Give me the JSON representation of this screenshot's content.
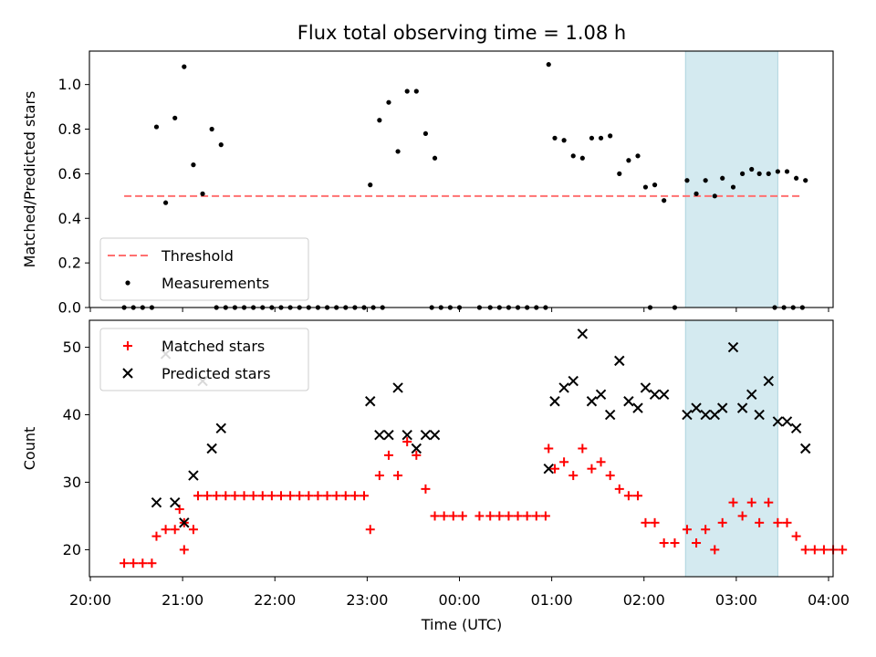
{
  "chart_data": {
    "title": "Flux total observing time = 1.08 h",
    "xlabel": "Time (UTC)",
    "x_ticks": [
      "20:00",
      "21:00",
      "22:00",
      "23:00",
      "00:00",
      "01:00",
      "02:00",
      "03:00",
      "04:00"
    ],
    "x_range": [
      "20:00",
      "04:05"
    ],
    "highlight_span": {
      "from": "02:27",
      "to": "03:27",
      "color": "#d4eaf0"
    },
    "panels": [
      {
        "type": "scatter",
        "ylabel": "Matched/Predicted stars",
        "ylim": [
          0,
          1.15
        ],
        "y_ticks": [
          0.0,
          0.2,
          0.4,
          0.6,
          0.8,
          1.0
        ],
        "threshold": {
          "name": "Threshold",
          "value": 0.5,
          "from": "20:22",
          "to": "03:42",
          "color": "#ff7070"
        },
        "legend": [
          "Threshold",
          "Measurements"
        ],
        "series": [
          {
            "name": "Measurements",
            "color": "#000000",
            "points": [
              [
                "20:22",
                0.0
              ],
              [
                "20:28",
                0.0
              ],
              [
                "20:34",
                0.0
              ],
              [
                "20:40",
                0.0
              ],
              [
                "20:43",
                0.81
              ],
              [
                "20:49",
                0.47
              ],
              [
                "20:55",
                0.85
              ],
              [
                "21:01",
                1.08
              ],
              [
                "21:07",
                0.64
              ],
              [
                "21:13",
                0.51
              ],
              [
                "21:19",
                0.8
              ],
              [
                "21:25",
                0.73
              ],
              [
                "21:22",
                0.0
              ],
              [
                "21:28",
                0.0
              ],
              [
                "21:34",
                0.0
              ],
              [
                "21:40",
                0.0
              ],
              [
                "21:46",
                0.0
              ],
              [
                "21:52",
                0.0
              ],
              [
                "21:58",
                0.0
              ],
              [
                "22:04",
                0.0
              ],
              [
                "22:10",
                0.0
              ],
              [
                "22:16",
                0.0
              ],
              [
                "22:22",
                0.0
              ],
              [
                "22:28",
                0.0
              ],
              [
                "22:34",
                0.0
              ],
              [
                "22:40",
                0.0
              ],
              [
                "22:46",
                0.0
              ],
              [
                "22:52",
                0.0
              ],
              [
                "22:58",
                0.0
              ],
              [
                "23:04",
                0.0
              ],
              [
                "23:10",
                0.0
              ],
              [
                "23:02",
                0.55
              ],
              [
                "23:08",
                0.84
              ],
              [
                "23:14",
                0.92
              ],
              [
                "23:20",
                0.7
              ],
              [
                "23:26",
                0.97
              ],
              [
                "23:32",
                0.97
              ],
              [
                "23:38",
                0.78
              ],
              [
                "23:44",
                0.67
              ],
              [
                "23:42",
                0.0
              ],
              [
                "23:48",
                0.0
              ],
              [
                "23:54",
                0.0
              ],
              [
                "00:00",
                0.0
              ],
              [
                "00:13",
                0.0
              ],
              [
                "00:20",
                0.0
              ],
              [
                "00:26",
                0.0
              ],
              [
                "00:32",
                0.0
              ],
              [
                "00:38",
                0.0
              ],
              [
                "00:44",
                0.0
              ],
              [
                "00:50",
                0.0
              ],
              [
                "00:56",
                0.0
              ],
              [
                "00:58",
                1.09
              ],
              [
                "01:02",
                0.76
              ],
              [
                "01:08",
                0.75
              ],
              [
                "01:14",
                0.68
              ],
              [
                "01:20",
                0.67
              ],
              [
                "01:26",
                0.76
              ],
              [
                "01:32",
                0.76
              ],
              [
                "01:38",
                0.77
              ],
              [
                "01:44",
                0.6
              ],
              [
                "01:50",
                0.66
              ],
              [
                "01:56",
                0.68
              ],
              [
                "02:01",
                0.54
              ],
              [
                "02:07",
                0.55
              ],
              [
                "02:04",
                0.0
              ],
              [
                "02:13",
                0.48
              ],
              [
                "02:20",
                0.0
              ],
              [
                "02:28",
                0.57
              ],
              [
                "02:34",
                0.51
              ],
              [
                "02:40",
                0.57
              ],
              [
                "02:46",
                0.5
              ],
              [
                "02:51",
                0.58
              ],
              [
                "02:58",
                0.54
              ],
              [
                "03:04",
                0.6
              ],
              [
                "03:10",
                0.62
              ],
              [
                "03:15",
                0.6
              ],
              [
                "03:21",
                0.6
              ],
              [
                "03:27",
                0.61
              ],
              [
                "03:33",
                0.61
              ],
              [
                "03:39",
                0.58
              ],
              [
                "03:45",
                0.57
              ],
              [
                "03:25",
                0.0
              ],
              [
                "03:31",
                0.0
              ],
              [
                "03:37",
                0.0
              ],
              [
                "03:43",
                0.0
              ]
            ]
          }
        ]
      },
      {
        "type": "scatter",
        "ylabel": "Count",
        "ylim": [
          16,
          54
        ],
        "y_ticks": [
          20,
          30,
          40,
          50
        ],
        "legend": [
          "Matched stars",
          "Predicted stars"
        ],
        "series": [
          {
            "name": "Matched stars",
            "marker": "plus",
            "color": "#ff0000",
            "points": [
              [
                "20:22",
                18
              ],
              [
                "20:28",
                18
              ],
              [
                "20:34",
                18
              ],
              [
                "20:40",
                18
              ],
              [
                "20:43",
                22
              ],
              [
                "20:49",
                23
              ],
              [
                "20:55",
                23
              ],
              [
                "20:58",
                26
              ],
              [
                "21:01",
                24
              ],
              [
                "21:01",
                20
              ],
              [
                "21:07",
                23
              ],
              [
                "21:10",
                28
              ],
              [
                "21:16",
                28
              ],
              [
                "21:22",
                28
              ],
              [
                "21:28",
                28
              ],
              [
                "21:34",
                28
              ],
              [
                "21:40",
                28
              ],
              [
                "21:46",
                28
              ],
              [
                "21:52",
                28
              ],
              [
                "21:58",
                28
              ],
              [
                "22:04",
                28
              ],
              [
                "22:10",
                28
              ],
              [
                "22:16",
                28
              ],
              [
                "22:22",
                28
              ],
              [
                "22:28",
                28
              ],
              [
                "22:34",
                28
              ],
              [
                "22:40",
                28
              ],
              [
                "22:46",
                28
              ],
              [
                "22:52",
                28
              ],
              [
                "22:58",
                28
              ],
              [
                "23:02",
                23
              ],
              [
                "23:08",
                31
              ],
              [
                "23:14",
                34
              ],
              [
                "23:20",
                31
              ],
              [
                "23:26",
                36
              ],
              [
                "23:32",
                34
              ],
              [
                "23:38",
                29
              ],
              [
                "23:44",
                25
              ],
              [
                "23:50",
                25
              ],
              [
                "23:56",
                25
              ],
              [
                "00:02",
                25
              ],
              [
                "00:13",
                25
              ],
              [
                "00:20",
                25
              ],
              [
                "00:26",
                25
              ],
              [
                "00:32",
                25
              ],
              [
                "00:38",
                25
              ],
              [
                "00:44",
                25
              ],
              [
                "00:50",
                25
              ],
              [
                "00:56",
                25
              ],
              [
                "00:58",
                35
              ],
              [
                "01:02",
                32
              ],
              [
                "01:08",
                33
              ],
              [
                "01:14",
                31
              ],
              [
                "01:20",
                35
              ],
              [
                "01:26",
                32
              ],
              [
                "01:32",
                33
              ],
              [
                "01:38",
                31
              ],
              [
                "01:44",
                29
              ],
              [
                "01:50",
                28
              ],
              [
                "01:56",
                28
              ],
              [
                "02:01",
                24
              ],
              [
                "02:07",
                24
              ],
              [
                "02:13",
                21
              ],
              [
                "02:20",
                21
              ],
              [
                "02:28",
                23
              ],
              [
                "02:34",
                21
              ],
              [
                "02:40",
                23
              ],
              [
                "02:46",
                20
              ],
              [
                "02:51",
                24
              ],
              [
                "02:58",
                27
              ],
              [
                "03:04",
                25
              ],
              [
                "03:10",
                27
              ],
              [
                "03:15",
                24
              ],
              [
                "03:21",
                27
              ],
              [
                "03:27",
                24
              ],
              [
                "03:33",
                24
              ],
              [
                "03:39",
                22
              ],
              [
                "03:45",
                20
              ],
              [
                "03:51",
                20
              ],
              [
                "03:57",
                20
              ],
              [
                "04:03",
                20
              ],
              [
                "04:09",
                20
              ]
            ]
          },
          {
            "name": "Predicted stars",
            "marker": "cross",
            "color": "#000000",
            "points": [
              [
                "20:43",
                27
              ],
              [
                "20:49",
                49
              ],
              [
                "20:55",
                27
              ],
              [
                "21:01",
                24
              ],
              [
                "21:07",
                31
              ],
              [
                "21:13",
                45
              ],
              [
                "21:19",
                35
              ],
              [
                "21:25",
                38
              ],
              [
                "23:02",
                42
              ],
              [
                "23:08",
                37
              ],
              [
                "23:14",
                37
              ],
              [
                "23:20",
                44
              ],
              [
                "23:26",
                37
              ],
              [
                "23:32",
                35
              ],
              [
                "23:38",
                37
              ],
              [
                "23:44",
                37
              ],
              [
                "00:58",
                32
              ],
              [
                "01:02",
                42
              ],
              [
                "01:08",
                44
              ],
              [
                "01:14",
                45
              ],
              [
                "01:20",
                52
              ],
              [
                "01:26",
                42
              ],
              [
                "01:32",
                43
              ],
              [
                "01:38",
                40
              ],
              [
                "01:44",
                48
              ],
              [
                "01:50",
                42
              ],
              [
                "01:56",
                41
              ],
              [
                "02:01",
                44
              ],
              [
                "02:07",
                43
              ],
              [
                "02:13",
                43
              ],
              [
                "02:28",
                40
              ],
              [
                "02:34",
                41
              ],
              [
                "02:40",
                40
              ],
              [
                "02:46",
                40
              ],
              [
                "02:51",
                41
              ],
              [
                "02:58",
                50
              ],
              [
                "03:04",
                41
              ],
              [
                "03:10",
                43
              ],
              [
                "03:15",
                40
              ],
              [
                "03:21",
                45
              ],
              [
                "03:27",
                39
              ],
              [
                "03:33",
                39
              ],
              [
                "03:39",
                38
              ],
              [
                "03:45",
                35
              ]
            ]
          }
        ]
      }
    ]
  }
}
